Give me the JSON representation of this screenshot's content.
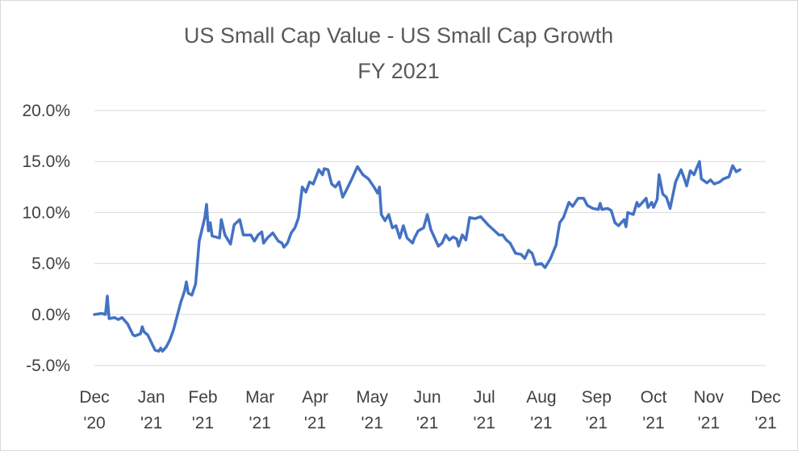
{
  "chart_data": {
    "type": "line",
    "title": "US Small Cap Value - US Small Cap Growth",
    "subtitle": "FY 2021",
    "xlabel": "",
    "ylabel": "",
    "xlim": [
      "2020-12-31",
      "2021-12-31"
    ],
    "ylim": [
      -5.0,
      20.0
    ],
    "y_ticks": [
      -5.0,
      0.0,
      5.0,
      10.0,
      15.0,
      20.0
    ],
    "y_tick_labels": [
      "-5.0%",
      "0.0%",
      "5.0%",
      "10.0%",
      "15.0%",
      "20.0%"
    ],
    "x_tick_labels": [
      {
        "date": "2020-12-31",
        "month": "Dec",
        "year": "'20"
      },
      {
        "date": "2021-01-31",
        "month": "Jan",
        "year": "'21"
      },
      {
        "date": "2021-02-28",
        "month": "Feb",
        "year": "'21"
      },
      {
        "date": "2021-03-31",
        "month": "Mar",
        "year": "'21"
      },
      {
        "date": "2021-04-30",
        "month": "Apr",
        "year": "'21"
      },
      {
        "date": "2021-05-31",
        "month": "May",
        "year": "'21"
      },
      {
        "date": "2021-06-30",
        "month": "Jun",
        "year": "'21"
      },
      {
        "date": "2021-07-31",
        "month": "Jul",
        "year": "'21"
      },
      {
        "date": "2021-08-31",
        "month": "Aug",
        "year": "'21"
      },
      {
        "date": "2021-09-30",
        "month": "Sep",
        "year": "'21"
      },
      {
        "date": "2021-10-31",
        "month": "Oct",
        "year": "'21"
      },
      {
        "date": "2021-11-30",
        "month": "Nov",
        "year": "'21"
      },
      {
        "date": "2021-12-31",
        "month": "Dec",
        "year": "'21"
      }
    ],
    "grid": true,
    "legend": "none",
    "line_color": "#4472c4",
    "grid_color": "#d9d9d9",
    "series": [
      {
        "values": [
          [
            "2020-12-31",
            0.0
          ],
          [
            "2021-01-04",
            0.1
          ],
          [
            "2021-01-06",
            0.0
          ],
          [
            "2021-01-07",
            1.8
          ],
          [
            "2021-01-08",
            -0.4
          ],
          [
            "2021-01-11",
            -0.3
          ],
          [
            "2021-01-13",
            -0.5
          ],
          [
            "2021-01-15",
            -0.3
          ],
          [
            "2021-01-18",
            -0.9
          ],
          [
            "2021-01-21",
            -2.0
          ],
          [
            "2021-01-22",
            -2.1
          ],
          [
            "2021-01-25",
            -1.9
          ],
          [
            "2021-01-26",
            -1.2
          ],
          [
            "2021-01-27",
            -1.7
          ],
          [
            "2021-01-29",
            -2.0
          ],
          [
            "2021-02-02",
            -3.5
          ],
          [
            "2021-02-04",
            -3.6
          ],
          [
            "2021-02-05",
            -3.3
          ],
          [
            "2021-02-06",
            -3.6
          ],
          [
            "2021-02-08",
            -3.2
          ],
          [
            "2021-02-10",
            -2.5
          ],
          [
            "2021-02-12",
            -1.5
          ],
          [
            "2021-02-16",
            1.2
          ],
          [
            "2021-02-18",
            2.3
          ],
          [
            "2021-02-19",
            3.2
          ],
          [
            "2021-02-20",
            2.1
          ],
          [
            "2021-02-22",
            1.9
          ],
          [
            "2021-02-24",
            3.0
          ],
          [
            "2021-02-26",
            7.2
          ],
          [
            "2021-03-01",
            9.5
          ],
          [
            "2021-03-02",
            10.8
          ],
          [
            "2021-03-03",
            8.2
          ],
          [
            "2021-03-04",
            9.0
          ],
          [
            "2021-03-05",
            7.7
          ],
          [
            "2021-03-09",
            7.5
          ],
          [
            "2021-03-10",
            9.3
          ],
          [
            "2021-03-12",
            7.8
          ],
          [
            "2021-03-15",
            6.9
          ],
          [
            "2021-03-17",
            8.8
          ],
          [
            "2021-03-20",
            9.3
          ],
          [
            "2021-03-22",
            7.8
          ],
          [
            "2021-03-26",
            7.8
          ],
          [
            "2021-03-28",
            7.2
          ],
          [
            "2021-03-30",
            7.8
          ],
          [
            "2021-04-01",
            8.1
          ],
          [
            "2021-04-02",
            7.0
          ],
          [
            "2021-04-04",
            7.5
          ],
          [
            "2021-04-07",
            8.0
          ],
          [
            "2021-04-10",
            7.2
          ],
          [
            "2021-04-12",
            7.0
          ],
          [
            "2021-04-13",
            6.6
          ],
          [
            "2021-04-15",
            7.0
          ],
          [
            "2021-04-17",
            8.0
          ],
          [
            "2021-04-19",
            8.5
          ],
          [
            "2021-04-21",
            9.5
          ],
          [
            "2021-04-23",
            12.5
          ],
          [
            "2021-04-25",
            12.0
          ],
          [
            "2021-04-27",
            13.0
          ],
          [
            "2021-04-29",
            12.8
          ],
          [
            "2021-05-02",
            14.2
          ],
          [
            "2021-05-04",
            13.7
          ],
          [
            "2021-05-05",
            14.3
          ],
          [
            "2021-05-07",
            14.2
          ],
          [
            "2021-05-09",
            12.8
          ],
          [
            "2021-05-11",
            12.5
          ],
          [
            "2021-05-13",
            13.0
          ],
          [
            "2021-05-15",
            11.5
          ],
          [
            "2021-05-17",
            12.2
          ],
          [
            "2021-05-20",
            13.3
          ],
          [
            "2021-05-23",
            14.5
          ],
          [
            "2021-05-26",
            13.7
          ],
          [
            "2021-05-29",
            13.3
          ],
          [
            "2021-06-01",
            12.5
          ],
          [
            "2021-06-03",
            11.9
          ],
          [
            "2021-06-04",
            12.5
          ],
          [
            "2021-06-05",
            9.8
          ],
          [
            "2021-06-07",
            9.2
          ],
          [
            "2021-06-09",
            9.8
          ],
          [
            "2021-06-11",
            8.5
          ],
          [
            "2021-06-13",
            8.7
          ],
          [
            "2021-06-15",
            7.5
          ],
          [
            "2021-06-17",
            8.7
          ],
          [
            "2021-06-19",
            7.5
          ],
          [
            "2021-06-22",
            7.0
          ],
          [
            "2021-06-23",
            7.5
          ],
          [
            "2021-06-25",
            8.2
          ],
          [
            "2021-06-28",
            8.5
          ],
          [
            "2021-06-30",
            9.8
          ],
          [
            "2021-07-02",
            8.3
          ],
          [
            "2021-07-04",
            7.5
          ],
          [
            "2021-07-06",
            6.7
          ],
          [
            "2021-07-08",
            7.0
          ],
          [
            "2021-07-10",
            7.8
          ],
          [
            "2021-07-12",
            7.3
          ],
          [
            "2021-07-14",
            7.6
          ],
          [
            "2021-07-16",
            7.4
          ],
          [
            "2021-07-17",
            6.7
          ],
          [
            "2021-07-19",
            7.8
          ],
          [
            "2021-07-21",
            7.3
          ],
          [
            "2021-07-23",
            9.5
          ],
          [
            "2021-07-26",
            9.4
          ],
          [
            "2021-07-29",
            9.6
          ],
          [
            "2021-08-02",
            8.8
          ],
          [
            "2021-08-05",
            8.3
          ],
          [
            "2021-08-08",
            7.8
          ],
          [
            "2021-08-10",
            7.8
          ],
          [
            "2021-08-12",
            7.3
          ],
          [
            "2021-08-14",
            7.0
          ],
          [
            "2021-08-17",
            6.0
          ],
          [
            "2021-08-20",
            5.9
          ],
          [
            "2021-08-22",
            5.5
          ],
          [
            "2021-08-24",
            6.3
          ],
          [
            "2021-08-26",
            6.0
          ],
          [
            "2021-08-28",
            4.9
          ],
          [
            "2021-08-31",
            5.0
          ],
          [
            "2021-09-02",
            4.6
          ],
          [
            "2021-09-05",
            5.5
          ],
          [
            "2021-09-08",
            6.8
          ],
          [
            "2021-09-10",
            9.0
          ],
          [
            "2021-09-12",
            9.5
          ],
          [
            "2021-09-15",
            11.0
          ],
          [
            "2021-09-17",
            10.6
          ],
          [
            "2021-09-20",
            11.4
          ],
          [
            "2021-09-23",
            11.4
          ],
          [
            "2021-09-25",
            10.7
          ],
          [
            "2021-09-28",
            10.4
          ],
          [
            "2021-10-01",
            10.3
          ],
          [
            "2021-10-02",
            10.9
          ],
          [
            "2021-10-03",
            10.3
          ],
          [
            "2021-10-06",
            10.4
          ],
          [
            "2021-10-08",
            10.2
          ],
          [
            "2021-10-10",
            9.0
          ],
          [
            "2021-10-12",
            8.7
          ],
          [
            "2021-10-15",
            9.3
          ],
          [
            "2021-10-16",
            8.6
          ],
          [
            "2021-10-17",
            10.0
          ],
          [
            "2021-10-20",
            9.8
          ],
          [
            "2021-10-22",
            11.0
          ],
          [
            "2021-10-23",
            10.6
          ],
          [
            "2021-10-25",
            11.0
          ],
          [
            "2021-10-27",
            11.4
          ],
          [
            "2021-10-28",
            10.5
          ],
          [
            "2021-10-30",
            11.0
          ],
          [
            "2021-10-31",
            10.5
          ],
          [
            "2021-11-02",
            11.3
          ],
          [
            "2021-11-03",
            13.7
          ],
          [
            "2021-11-05",
            11.8
          ],
          [
            "2021-11-07",
            11.5
          ],
          [
            "2021-11-09",
            10.4
          ],
          [
            "2021-11-12",
            13.0
          ],
          [
            "2021-11-15",
            14.2
          ],
          [
            "2021-11-17",
            13.2
          ],
          [
            "2021-11-18",
            12.6
          ],
          [
            "2021-11-20",
            14.1
          ],
          [
            "2021-11-22",
            13.7
          ],
          [
            "2021-11-24",
            14.6
          ],
          [
            "2021-11-25",
            15.0
          ],
          [
            "2021-11-26",
            13.3
          ],
          [
            "2021-11-29",
            12.9
          ],
          [
            "2021-12-01",
            13.2
          ],
          [
            "2021-12-03",
            12.8
          ],
          [
            "2021-12-06",
            13.0
          ],
          [
            "2021-12-08",
            13.3
          ],
          [
            "2021-12-11",
            13.5
          ],
          [
            "2021-12-13",
            14.6
          ],
          [
            "2021-12-15",
            14.0
          ],
          [
            "2021-12-17",
            14.2
          ]
        ]
      }
    ]
  }
}
